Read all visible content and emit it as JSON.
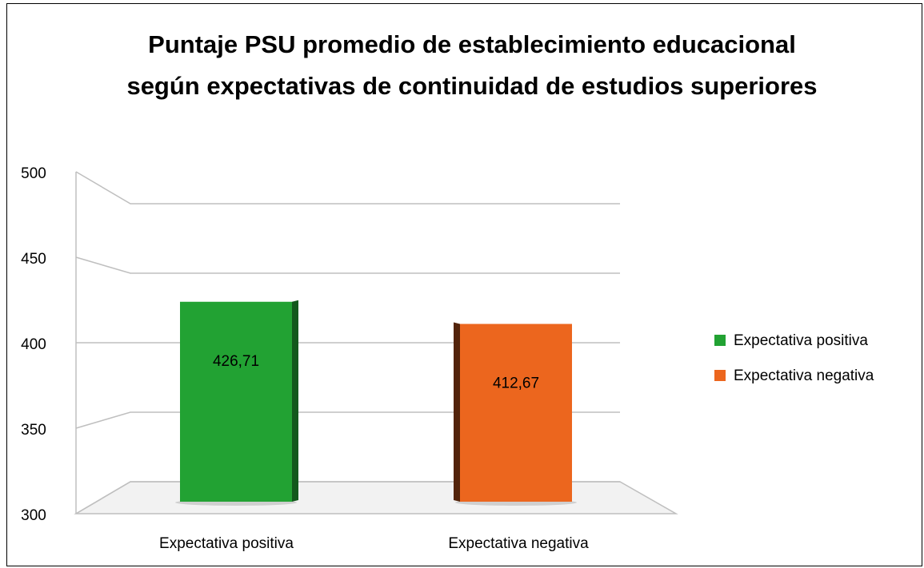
{
  "chart_data": {
    "type": "bar3d",
    "title": "Puntaje PSU promedio de establecimiento educacional según expectativas de continuidad de estudios superiores",
    "categories": [
      "Expectativa positiva",
      "Expectativa negativa"
    ],
    "values": [
      426.71,
      412.67
    ],
    "value_labels": [
      "426,71",
      "412,67"
    ],
    "colors": [
      "#22a233",
      "#ec661e"
    ],
    "ylim": [
      300,
      500
    ],
    "yticks": [
      300,
      350,
      400,
      450,
      500
    ],
    "grid": true,
    "legend": "right"
  }
}
